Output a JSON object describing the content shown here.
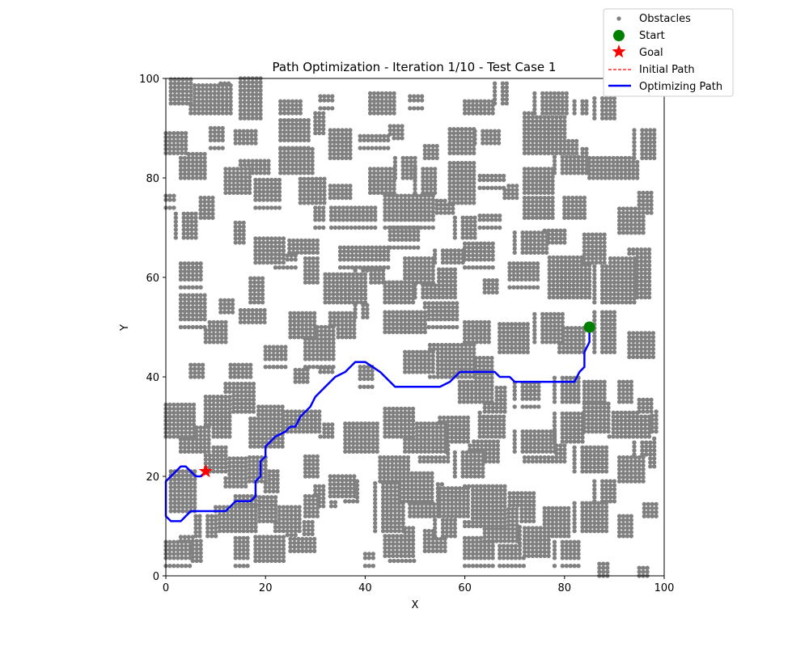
{
  "chart_data": {
    "type": "scatter",
    "title": "Path Optimization - Iteration 1/10 - Test Case 1",
    "xlabel": "X",
    "ylabel": "Y",
    "xlim": [
      0,
      100
    ],
    "ylim": [
      0,
      100
    ],
    "xticks": [
      0,
      20,
      40,
      60,
      80,
      100
    ],
    "yticks": [
      0,
      20,
      40,
      60,
      80,
      100
    ],
    "grid": false,
    "legend_position": "top-right, outside",
    "legend": [
      {
        "label": "Obstacles",
        "marker": "dot",
        "color": "#808080"
      },
      {
        "label": "Start",
        "marker": "circle",
        "color": "#008000"
      },
      {
        "label": "Goal",
        "marker": "star",
        "color": "#ff0000"
      },
      {
        "label": "Initial Path",
        "marker": "dashed-line",
        "color": "#ff0000"
      },
      {
        "label": "Optimizing Path",
        "marker": "line",
        "color": "#0000ff"
      }
    ],
    "start": {
      "x": 85,
      "y": 50,
      "color": "#008000"
    },
    "goal": {
      "x": 8,
      "y": 21,
      "color": "#ff0000"
    },
    "obstacle_color": "#808080",
    "obstacle_grid_step": 0.8,
    "obstacle_clusters": [
      [
        1,
        95,
        4,
        5
      ],
      [
        5,
        93,
        8,
        6
      ],
      [
        11,
        95,
        2,
        4
      ],
      [
        15,
        92,
        4,
        8
      ],
      [
        23,
        93,
        4,
        3
      ],
      [
        31,
        94,
        3,
        3
      ],
      [
        41,
        93,
        5,
        4
      ],
      [
        49,
        94,
        3,
        3
      ],
      [
        60,
        93,
        6,
        3
      ],
      [
        66,
        95,
        3,
        4
      ],
      [
        74,
        93,
        7,
        4
      ],
      [
        82,
        93,
        3,
        3
      ],
      [
        86,
        92,
        4,
        4
      ],
      [
        0,
        85,
        4,
        4
      ],
      [
        9,
        86,
        3,
        4
      ],
      [
        14,
        87,
        4,
        3
      ],
      [
        23,
        86,
        6,
        6
      ],
      [
        30,
        89,
        3,
        4
      ],
      [
        33,
        84,
        4,
        6
      ],
      [
        39,
        86,
        6,
        3
      ],
      [
        45,
        88,
        3,
        3
      ],
      [
        52,
        84,
        3,
        3
      ],
      [
        57,
        85,
        5,
        5
      ],
      [
        62,
        87,
        5,
        3
      ],
      [
        72,
        85,
        8,
        8
      ],
      [
        80,
        85,
        3,
        3
      ],
      [
        94,
        84,
        4,
        6
      ],
      [
        3,
        80,
        5,
        5
      ],
      [
        12,
        77,
        5,
        5
      ],
      [
        15,
        81,
        6,
        3
      ],
      [
        18,
        74,
        5,
        6
      ],
      [
        23,
        81,
        7,
        5
      ],
      [
        27,
        75,
        5,
        5
      ],
      [
        33,
        76,
        4,
        3
      ],
      [
        41,
        77,
        5,
        5
      ],
      [
        46,
        80,
        4,
        4
      ],
      [
        50,
        77,
        4,
        5
      ],
      [
        57,
        75,
        5,
        8
      ],
      [
        63,
        78,
        5,
        3
      ],
      [
        68,
        76,
        3,
        3
      ],
      [
        72,
        77,
        6,
        5
      ],
      [
        78,
        81,
        7,
        5
      ],
      [
        85,
        80,
        10,
        4
      ],
      [
        0,
        74,
        2,
        3
      ],
      [
        7,
        72,
        3,
        4
      ],
      [
        30,
        70,
        12,
        4
      ],
      [
        44,
        70,
        10,
        7
      ],
      [
        52,
        73,
        6,
        3
      ],
      [
        58,
        68,
        4,
        4
      ],
      [
        63,
        70,
        4,
        3
      ],
      [
        72,
        72,
        6,
        4
      ],
      [
        80,
        72,
        4,
        4
      ],
      [
        91,
        69,
        5,
        5
      ],
      [
        95,
        73,
        3,
        4
      ],
      [
        2,
        68,
        4,
        5
      ],
      [
        14,
        67,
        2,
        4
      ],
      [
        18,
        63,
        6,
        5
      ],
      [
        24,
        65,
        7,
        3
      ],
      [
        28,
        59,
        3,
        5
      ],
      [
        35,
        62,
        10,
        4
      ],
      [
        45,
        66,
        6,
        5
      ],
      [
        48,
        59,
        6,
        5
      ],
      [
        54,
        63,
        6,
        3
      ],
      [
        60,
        62,
        6,
        5
      ],
      [
        70,
        65,
        7,
        4
      ],
      [
        76,
        67,
        4,
        3
      ],
      [
        84,
        63,
        4,
        6
      ],
      [
        3,
        58,
        4,
        5
      ],
      [
        17,
        55,
        3,
        5
      ],
      [
        22,
        62,
        4,
        3
      ],
      [
        32,
        55,
        8,
        6
      ],
      [
        38,
        59,
        6,
        5
      ],
      [
        44,
        55,
        6,
        4
      ],
      [
        50,
        56,
        8,
        6
      ],
      [
        64,
        57,
        3,
        3
      ],
      [
        69,
        58,
        6,
        5
      ],
      [
        77,
        56,
        8,
        8
      ],
      [
        86,
        55,
        8,
        9
      ],
      [
        93,
        56,
        4,
        10
      ],
      [
        3,
        50,
        5,
        7
      ],
      [
        8,
        47,
        4,
        4
      ],
      [
        11,
        53,
        3,
        3
      ],
      [
        15,
        51,
        5,
        3
      ],
      [
        25,
        48,
        5,
        5
      ],
      [
        28,
        42,
        6,
        8
      ],
      [
        33,
        48,
        5,
        5
      ],
      [
        38,
        52,
        3,
        4
      ],
      [
        44,
        49,
        8,
        4
      ],
      [
        52,
        50,
        7,
        5
      ],
      [
        60,
        47,
        5,
        4
      ],
      [
        67,
        45,
        6,
        6
      ],
      [
        74,
        47,
        6,
        6
      ],
      [
        79,
        45,
        5,
        5
      ],
      [
        86,
        45,
        4,
        8
      ],
      [
        93,
        44,
        5,
        5
      ],
      [
        5,
        40,
        3,
        3
      ],
      [
        13,
        40,
        4,
        3
      ],
      [
        20,
        42,
        4,
        4
      ],
      [
        26,
        39,
        3,
        3
      ],
      [
        31,
        41,
        3,
        3
      ],
      [
        39,
        38,
        3,
        4
      ],
      [
        48,
        41,
        6,
        4
      ],
      [
        53,
        40,
        9,
        7
      ],
      [
        59,
        35,
        7,
        9
      ],
      [
        64,
        33,
        4,
        5
      ],
      [
        70,
        34,
        5,
        5
      ],
      [
        78,
        35,
        5,
        5
      ],
      [
        84,
        35,
        4,
        4
      ],
      [
        91,
        35,
        3,
        4
      ],
      [
        95,
        33,
        3,
        3
      ],
      [
        0,
        28,
        6,
        7
      ],
      [
        3,
        25,
        6,
        5
      ],
      [
        8,
        28,
        5,
        8
      ],
      [
        12,
        33,
        6,
        6
      ],
      [
        17,
        26,
        7,
        8
      ],
      [
        22,
        29,
        6,
        4
      ],
      [
        26,
        29,
        5,
        4
      ],
      [
        31,
        28,
        3,
        3
      ],
      [
        36,
        25,
        7,
        6
      ],
      [
        44,
        28,
        6,
        6
      ],
      [
        48,
        25,
        8,
        6
      ],
      [
        55,
        27,
        6,
        5
      ],
      [
        63,
        28,
        5,
        5
      ],
      [
        70,
        25,
        8,
        4
      ],
      [
        78,
        27,
        6,
        6
      ],
      [
        84,
        29,
        5,
        6
      ],
      [
        89,
        28,
        8,
        5
      ],
      [
        96,
        29,
        3,
        4
      ],
      [
        8,
        21,
        4,
        5
      ],
      [
        12,
        18,
        4,
        6
      ],
      [
        16,
        19,
        4,
        5
      ],
      [
        20,
        17,
        3,
        4
      ],
      [
        28,
        20,
        3,
        4
      ],
      [
        33,
        16,
        5,
        4
      ],
      [
        43,
        19,
        6,
        5
      ],
      [
        47,
        15,
        7,
        6
      ],
      [
        51,
        23,
        6,
        5
      ],
      [
        55,
        12,
        6,
        6
      ],
      [
        58,
        20,
        6,
        5
      ],
      [
        61,
        23,
        6,
        4
      ],
      [
        72,
        23,
        8,
        4
      ],
      [
        82,
        21,
        7,
        5
      ],
      [
        86,
        15,
        4,
        4
      ],
      [
        91,
        19,
        5,
        5
      ],
      [
        94,
        22,
        4,
        8
      ],
      [
        1,
        13,
        5,
        8
      ],
      [
        6,
        8,
        4,
        4
      ],
      [
        10,
        9,
        8,
        5
      ],
      [
        14,
        12,
        4,
        4
      ],
      [
        18,
        11,
        4,
        5
      ],
      [
        22,
        9,
        5,
        5
      ],
      [
        25,
        5,
        5,
        3
      ],
      [
        28,
        12,
        3,
        4
      ],
      [
        30,
        14,
        4,
        4
      ],
      [
        36,
        15,
        3,
        4
      ],
      [
        42,
        9,
        6,
        10
      ],
      [
        44,
        4,
        6,
        6
      ],
      [
        49,
        12,
        7,
        7
      ],
      [
        54,
        8,
        4,
        6
      ],
      [
        60,
        10,
        8,
        8
      ],
      [
        64,
        7,
        7,
        7
      ],
      [
        69,
        11,
        5,
        6
      ],
      [
        72,
        4,
        5,
        6
      ],
      [
        76,
        8,
        5,
        6
      ],
      [
        82,
        9,
        7,
        6
      ],
      [
        91,
        8,
        3,
        4
      ],
      [
        96,
        12,
        3,
        3
      ],
      [
        0,
        2,
        5,
        5
      ],
      [
        3,
        3,
        4,
        5
      ],
      [
        14,
        2,
        3,
        6
      ],
      [
        18,
        3,
        6,
        5
      ],
      [
        22,
        5,
        4,
        4
      ],
      [
        27,
        6,
        3,
        5
      ],
      [
        40,
        2,
        2,
        3
      ],
      [
        45,
        3,
        5,
        5
      ],
      [
        52,
        5,
        4,
        4
      ],
      [
        60,
        2,
        6,
        6
      ],
      [
        67,
        2,
        5,
        4
      ],
      [
        71,
        5,
        5,
        5
      ],
      [
        78,
        2,
        5,
        5
      ],
      [
        87,
        0,
        2,
        3
      ],
      [
        95,
        0,
        2,
        2
      ]
    ],
    "series": [
      {
        "name": "Optimizing Path",
        "color": "#0000ff",
        "x": [
          85,
          85,
          84.5,
          84,
          84,
          83,
          82,
          70,
          69,
          67,
          66,
          65,
          59,
          57,
          55,
          46,
          45,
          43,
          40,
          38,
          36,
          34,
          32,
          30,
          29,
          27,
          26,
          25,
          24,
          22,
          21,
          20,
          20,
          19,
          19,
          18,
          18,
          17,
          17,
          14,
          13,
          12,
          5,
          4,
          3,
          1,
          0,
          0,
          3,
          4,
          6,
          7,
          8
        ],
        "y": [
          50,
          47,
          46,
          45,
          42,
          41,
          39,
          39,
          40,
          40,
          41,
          41,
          41,
          39,
          38,
          38,
          39,
          41,
          43,
          43,
          41,
          40,
          38,
          36,
          34,
          32,
          30,
          30,
          29,
          28,
          27,
          26,
          24,
          23,
          20,
          19,
          16,
          15,
          15,
          15,
          14,
          13,
          13,
          12,
          11,
          11,
          12,
          19,
          22,
          22,
          20,
          20,
          21
        ]
      },
      {
        "name": "Initial Path",
        "color": "#ff0000",
        "x": [],
        "y": []
      }
    ]
  }
}
